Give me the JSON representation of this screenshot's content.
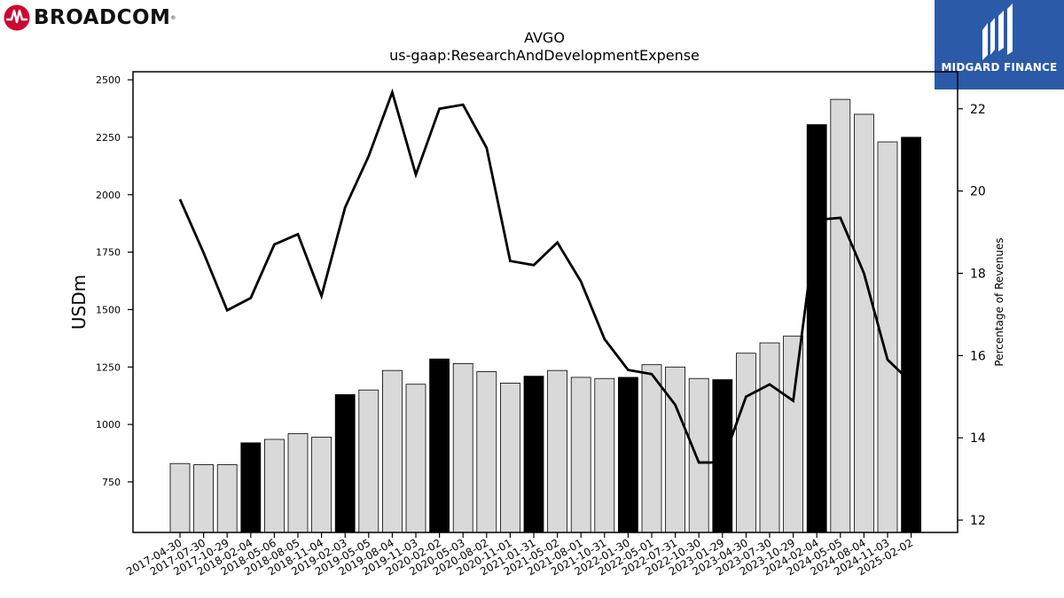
{
  "header": {
    "company_logo_text": "BROADCOM",
    "company_logo_reg": "®",
    "publisher_name": "MIDGARD FINANCE"
  },
  "colors": {
    "logo_red": "#cc092f",
    "badge_blue": "#2b5aa8",
    "bar_highlight": "#000000",
    "bar_normal": "#d9d9d9",
    "line": "#000000"
  },
  "chart_data": {
    "type": "bar",
    "title": "AVGO",
    "subtitle": "us-gaap:ResearchAndDevelopmentExpense",
    "ylabel": "USDm",
    "y2label": "Percentage of Revenues",
    "ylim": [
      530,
      2535
    ],
    "y2lim": [
      11.7,
      22.9
    ],
    "yticks": [
      750,
      1000,
      1250,
      1500,
      1750,
      2000,
      2250,
      2500
    ],
    "y2ticks": [
      12,
      14,
      16,
      18,
      20,
      22
    ],
    "categories": [
      "2017-04-30",
      "2017-07-30",
      "2017-10-29",
      "2018-02-04",
      "2018-05-06",
      "2018-08-05",
      "2018-11-04",
      "2019-02-03",
      "2019-05-05",
      "2019-08-04",
      "2019-11-03",
      "2020-02-02",
      "2020-05-03",
      "2020-08-02",
      "2020-11-01",
      "2021-01-31",
      "2021-05-02",
      "2021-08-01",
      "2021-10-31",
      "2022-01-30",
      "2022-05-01",
      "2022-07-31",
      "2022-10-30",
      "2023-01-29",
      "2023-04-30",
      "2023-07-30",
      "2023-10-29",
      "2024-02-04",
      "2024-05-05",
      "2024-08-04",
      "2024-11-03",
      "2025-02-02"
    ],
    "series": [
      {
        "axis": "left",
        "kind": "bar",
        "values": [
          830,
          825,
          825,
          920,
          935,
          960,
          945,
          1130,
          1150,
          1235,
          1175,
          1285,
          1265,
          1230,
          1180,
          1210,
          1235,
          1205,
          1200,
          1205,
          1260,
          1250,
          1200,
          1195,
          1310,
          1355,
          1385,
          2305,
          2415,
          2350,
          2230,
          2250
        ],
        "highlight": [
          false,
          false,
          false,
          true,
          false,
          false,
          false,
          true,
          false,
          false,
          false,
          true,
          false,
          false,
          false,
          true,
          false,
          false,
          false,
          true,
          false,
          false,
          false,
          true,
          false,
          false,
          false,
          true,
          false,
          false,
          false,
          true
        ]
      },
      {
        "axis": "right",
        "kind": "line",
        "values": [
          19.8,
          18.5,
          17.1,
          17.4,
          18.7,
          18.95,
          17.45,
          19.6,
          20.85,
          22.4,
          20.4,
          22.0,
          22.1,
          21.05,
          18.3,
          18.2,
          18.75,
          17.8,
          16.4,
          15.65,
          15.55,
          14.8,
          13.4,
          13.4,
          15.0,
          15.3,
          14.9,
          19.3,
          19.35,
          18.0,
          15.9,
          15.35
        ]
      }
    ],
    "grid": false
  }
}
